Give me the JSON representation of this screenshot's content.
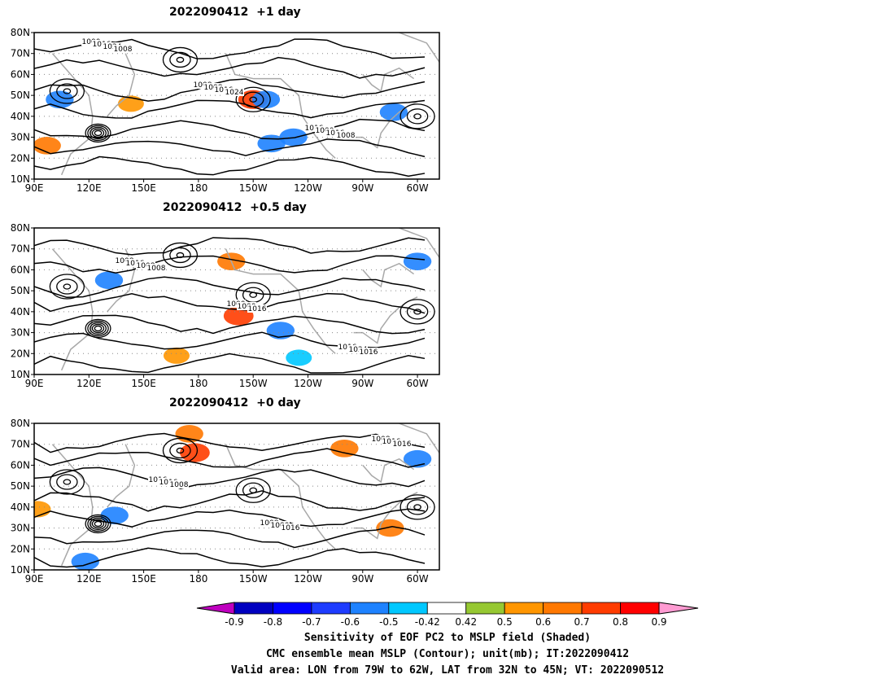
{
  "panels": [
    {
      "title": "2022090412  +1 day",
      "contour_labels": [
        "1000",
        "1008",
        "1016",
        "1016",
        "1008",
        "1000",
        "1024",
        "1016",
        "1016",
        "1008",
        "1024",
        "1008"
      ],
      "shading": [
        {
          "lon": -140,
          "lat": 27,
          "v": -0.6
        },
        {
          "lon": -128,
          "lat": 30,
          "v": -0.6
        },
        {
          "lon": -150,
          "lat": 48,
          "v": 0.7
        },
        {
          "lon": -143,
          "lat": 48,
          "v": -0.6
        },
        {
          "lon": 104,
          "lat": 48,
          "v": -0.6
        },
        {
          "lon": -73,
          "lat": 42,
          "v": -0.6
        },
        {
          "lon": 143,
          "lat": 46,
          "v": 0.5
        },
        {
          "lon": 97,
          "lat": 26,
          "v": 0.6
        }
      ]
    },
    {
      "title": "2022090412  +0.5 day",
      "contour_labels": [
        "1008",
        "1000",
        "1016",
        "1016",
        "1000",
        "1024",
        "1008",
        "1016",
        "1016",
        "1008"
      ],
      "shading": [
        {
          "lon": -158,
          "lat": 38,
          "v": 0.7
        },
        {
          "lon": -162,
          "lat": 64,
          "v": 0.6
        },
        {
          "lon": 131,
          "lat": 55,
          "v": -0.6
        },
        {
          "lon": -60,
          "lat": 64,
          "v": -0.6
        },
        {
          "lon": -135,
          "lat": 31,
          "v": -0.6
        },
        {
          "lon": 168,
          "lat": 19,
          "v": 0.5
        },
        {
          "lon": -125,
          "lat": 18,
          "v": -0.5
        }
      ]
    },
    {
      "title": "2022090412  +0 day",
      "contour_labels": [
        "1016",
        "1008",
        "1008",
        "1016",
        "1000",
        "1016",
        "1008",
        "1016",
        "1016"
      ],
      "shading": [
        {
          "lon": 178,
          "lat": 66,
          "v": 0.7
        },
        {
          "lon": 175,
          "lat": 75,
          "v": 0.6
        },
        {
          "lon": -100,
          "lat": 68,
          "v": 0.6
        },
        {
          "lon": -60,
          "lat": 63,
          "v": -0.6
        },
        {
          "lon": 134,
          "lat": 36,
          "v": -0.6
        },
        {
          "lon": 118,
          "lat": 14,
          "v": -0.6
        },
        {
          "lon": -75,
          "lat": 30,
          "v": 0.6
        },
        {
          "lon": 92,
          "lat": 39,
          "v": 0.5
        }
      ]
    }
  ],
  "axes": {
    "lat_ticks": [
      "80N",
      "70N",
      "60N",
      "50N",
      "40N",
      "30N",
      "20N",
      "10N"
    ],
    "lon_ticks": [
      "90E",
      "120E",
      "150E",
      "180",
      "150W",
      "120W",
      "90W",
      "60W"
    ]
  },
  "colorbar": {
    "labels": [
      "-0.9",
      "-0.8",
      "-0.7",
      "-0.6",
      "-0.5",
      "-0.42",
      "0.42",
      "0.5",
      "0.6",
      "0.7",
      "0.8",
      "0.9"
    ],
    "colors": [
      "#bf00bf",
      "#0000c0",
      "#0000ff",
      "#1e3cff",
      "#1e82ff",
      "#00c8ff",
      "#ffffff",
      "#96c832",
      "#ff9600",
      "#ff7800",
      "#ff3c00",
      "#ff0000",
      "#ff9bd2"
    ]
  },
  "caption": {
    "line1": "Sensitivity of EOF PC2 to MSLP field (Shaded)",
    "line2": "CMC ensemble mean MSLP (Contour); unit(mb); IT:2022090412",
    "line3": "Valid area: LON from 79W to 62W, LAT from 32N to 45N; VT: 2022090512"
  }
}
